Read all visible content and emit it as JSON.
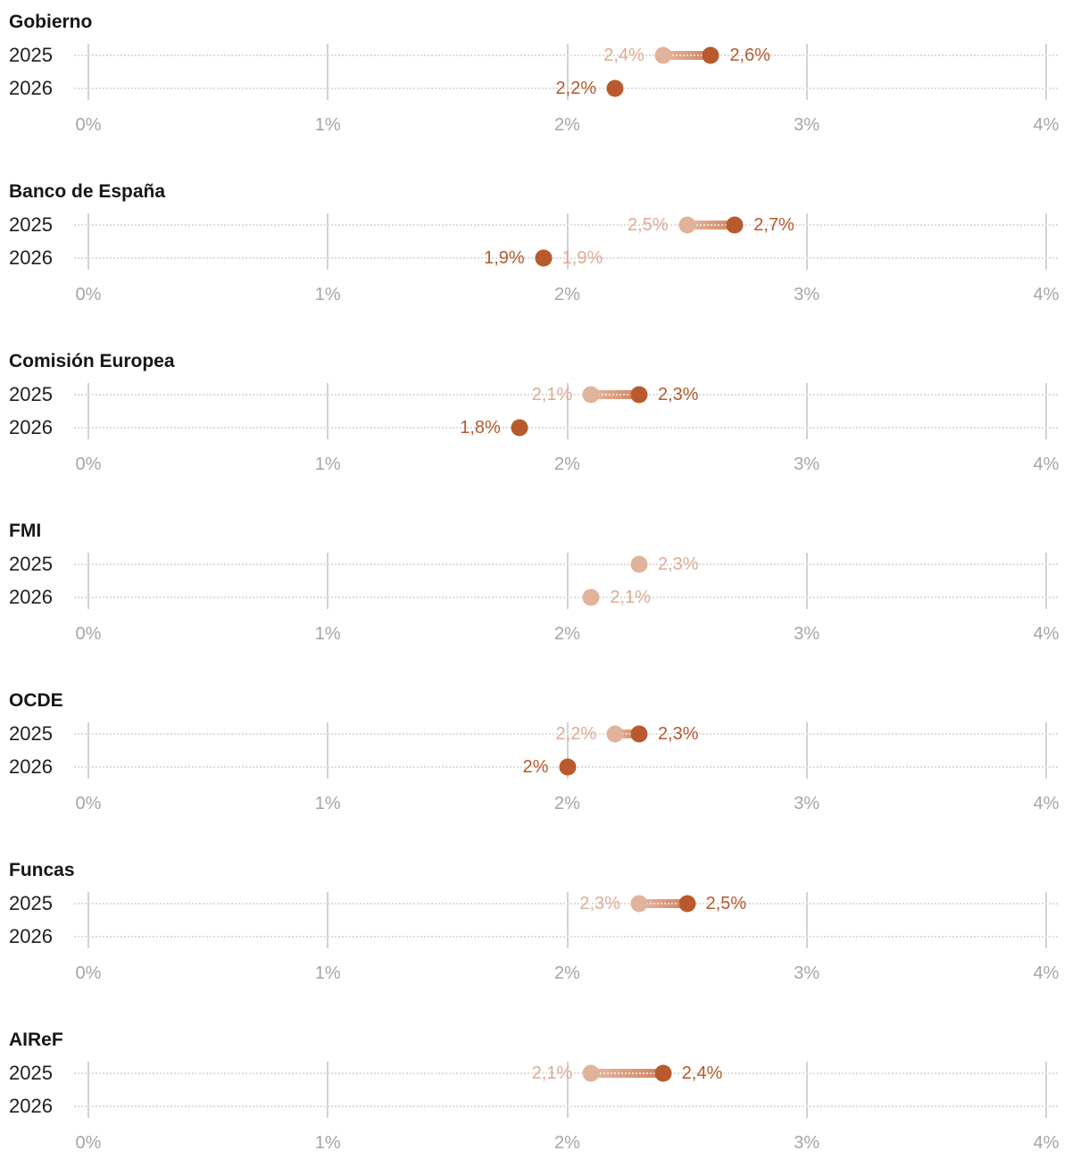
{
  "chart_data": {
    "type": "dumbbell",
    "title": "",
    "x_axis": {
      "min": 0,
      "max": 4,
      "tick_values": [
        0,
        1,
        2,
        3,
        4
      ],
      "tick_labels": [
        "0%",
        "1%",
        "2%",
        "3%",
        "4%"
      ],
      "grid": "dotted-horizontal-and-solid-vertical"
    },
    "series": [
      {
        "name": "previous-forecast",
        "color": "#e2b39c"
      },
      {
        "name": "current-forecast",
        "color": "#b95a2d"
      }
    ],
    "sections": [
      {
        "title": "Gobierno",
        "rows": [
          {
            "year": "2025",
            "connector": true,
            "points": [
              {
                "series": "previous",
                "value": 2.4,
                "label": "2,4%",
                "label_side": "left"
              },
              {
                "series": "current",
                "value": 2.6,
                "label": "2,6%",
                "label_side": "right"
              }
            ]
          },
          {
            "year": "2026",
            "connector": false,
            "points": [
              {
                "series": "current",
                "value": 2.2,
                "label": "2,2%",
                "label_side": "left"
              }
            ]
          }
        ]
      },
      {
        "title": "Banco de España",
        "rows": [
          {
            "year": "2025",
            "connector": true,
            "points": [
              {
                "series": "previous",
                "value": 2.5,
                "label": "2,5%",
                "label_side": "left"
              },
              {
                "series": "current",
                "value": 2.7,
                "label": "2,7%",
                "label_side": "right"
              }
            ]
          },
          {
            "year": "2026",
            "connector": false,
            "points": [
              {
                "series": "previous",
                "value": 1.9,
                "label": "1,9%",
                "label_side": "right"
              },
              {
                "series": "current",
                "value": 1.9,
                "label": "1,9%",
                "label_side": "left"
              }
            ]
          }
        ]
      },
      {
        "title": "Comisión Europea",
        "rows": [
          {
            "year": "2025",
            "connector": true,
            "points": [
              {
                "series": "previous",
                "value": 2.1,
                "label": "2,1%",
                "label_side": "left"
              },
              {
                "series": "current",
                "value": 2.3,
                "label": "2,3%",
                "label_side": "right"
              }
            ]
          },
          {
            "year": "2026",
            "connector": false,
            "points": [
              {
                "series": "current",
                "value": 1.8,
                "label": "1,8%",
                "label_side": "left"
              }
            ]
          }
        ]
      },
      {
        "title": "FMI",
        "rows": [
          {
            "year": "2025",
            "connector": false,
            "points": [
              {
                "series": "previous",
                "value": 2.3,
                "label": "2,3%",
                "label_side": "right"
              }
            ]
          },
          {
            "year": "2026",
            "connector": false,
            "points": [
              {
                "series": "previous",
                "value": 2.1,
                "label": "2,1%",
                "label_side": "right"
              }
            ]
          }
        ]
      },
      {
        "title": "OCDE",
        "rows": [
          {
            "year": "2025",
            "connector": true,
            "points": [
              {
                "series": "previous",
                "value": 2.2,
                "label": "2,2%",
                "label_side": "left"
              },
              {
                "series": "current",
                "value": 2.3,
                "label": "2,3%",
                "label_side": "right"
              }
            ]
          },
          {
            "year": "2026",
            "connector": false,
            "points": [
              {
                "series": "current",
                "value": 2.0,
                "label": "2%",
                "label_side": "left"
              }
            ]
          }
        ]
      },
      {
        "title": "Funcas",
        "rows": [
          {
            "year": "2025",
            "connector": true,
            "points": [
              {
                "series": "previous",
                "value": 2.3,
                "label": "2,3%",
                "label_side": "left"
              },
              {
                "series": "current",
                "value": 2.5,
                "label": "2,5%",
                "label_side": "right"
              }
            ]
          },
          {
            "year": "2026",
            "connector": false,
            "points": []
          }
        ]
      },
      {
        "title": "AIReF",
        "rows": [
          {
            "year": "2025",
            "connector": true,
            "points": [
              {
                "series": "previous",
                "value": 2.1,
                "label": "2,1%",
                "label_side": "left"
              },
              {
                "series": "current",
                "value": 2.4,
                "label": "2,4%",
                "label_side": "right"
              }
            ]
          },
          {
            "year": "2026",
            "connector": false,
            "points": []
          }
        ]
      }
    ]
  },
  "colors": {
    "previous": "#e2b39c",
    "current": "#b95a2d",
    "previous_label": "#dcab93",
    "current_label": "#b5592e",
    "axis_text": "#a5a5a5",
    "grid": "#d2d2d2",
    "row_grid": "#dcdcdc",
    "text": "#1f1f1f"
  }
}
